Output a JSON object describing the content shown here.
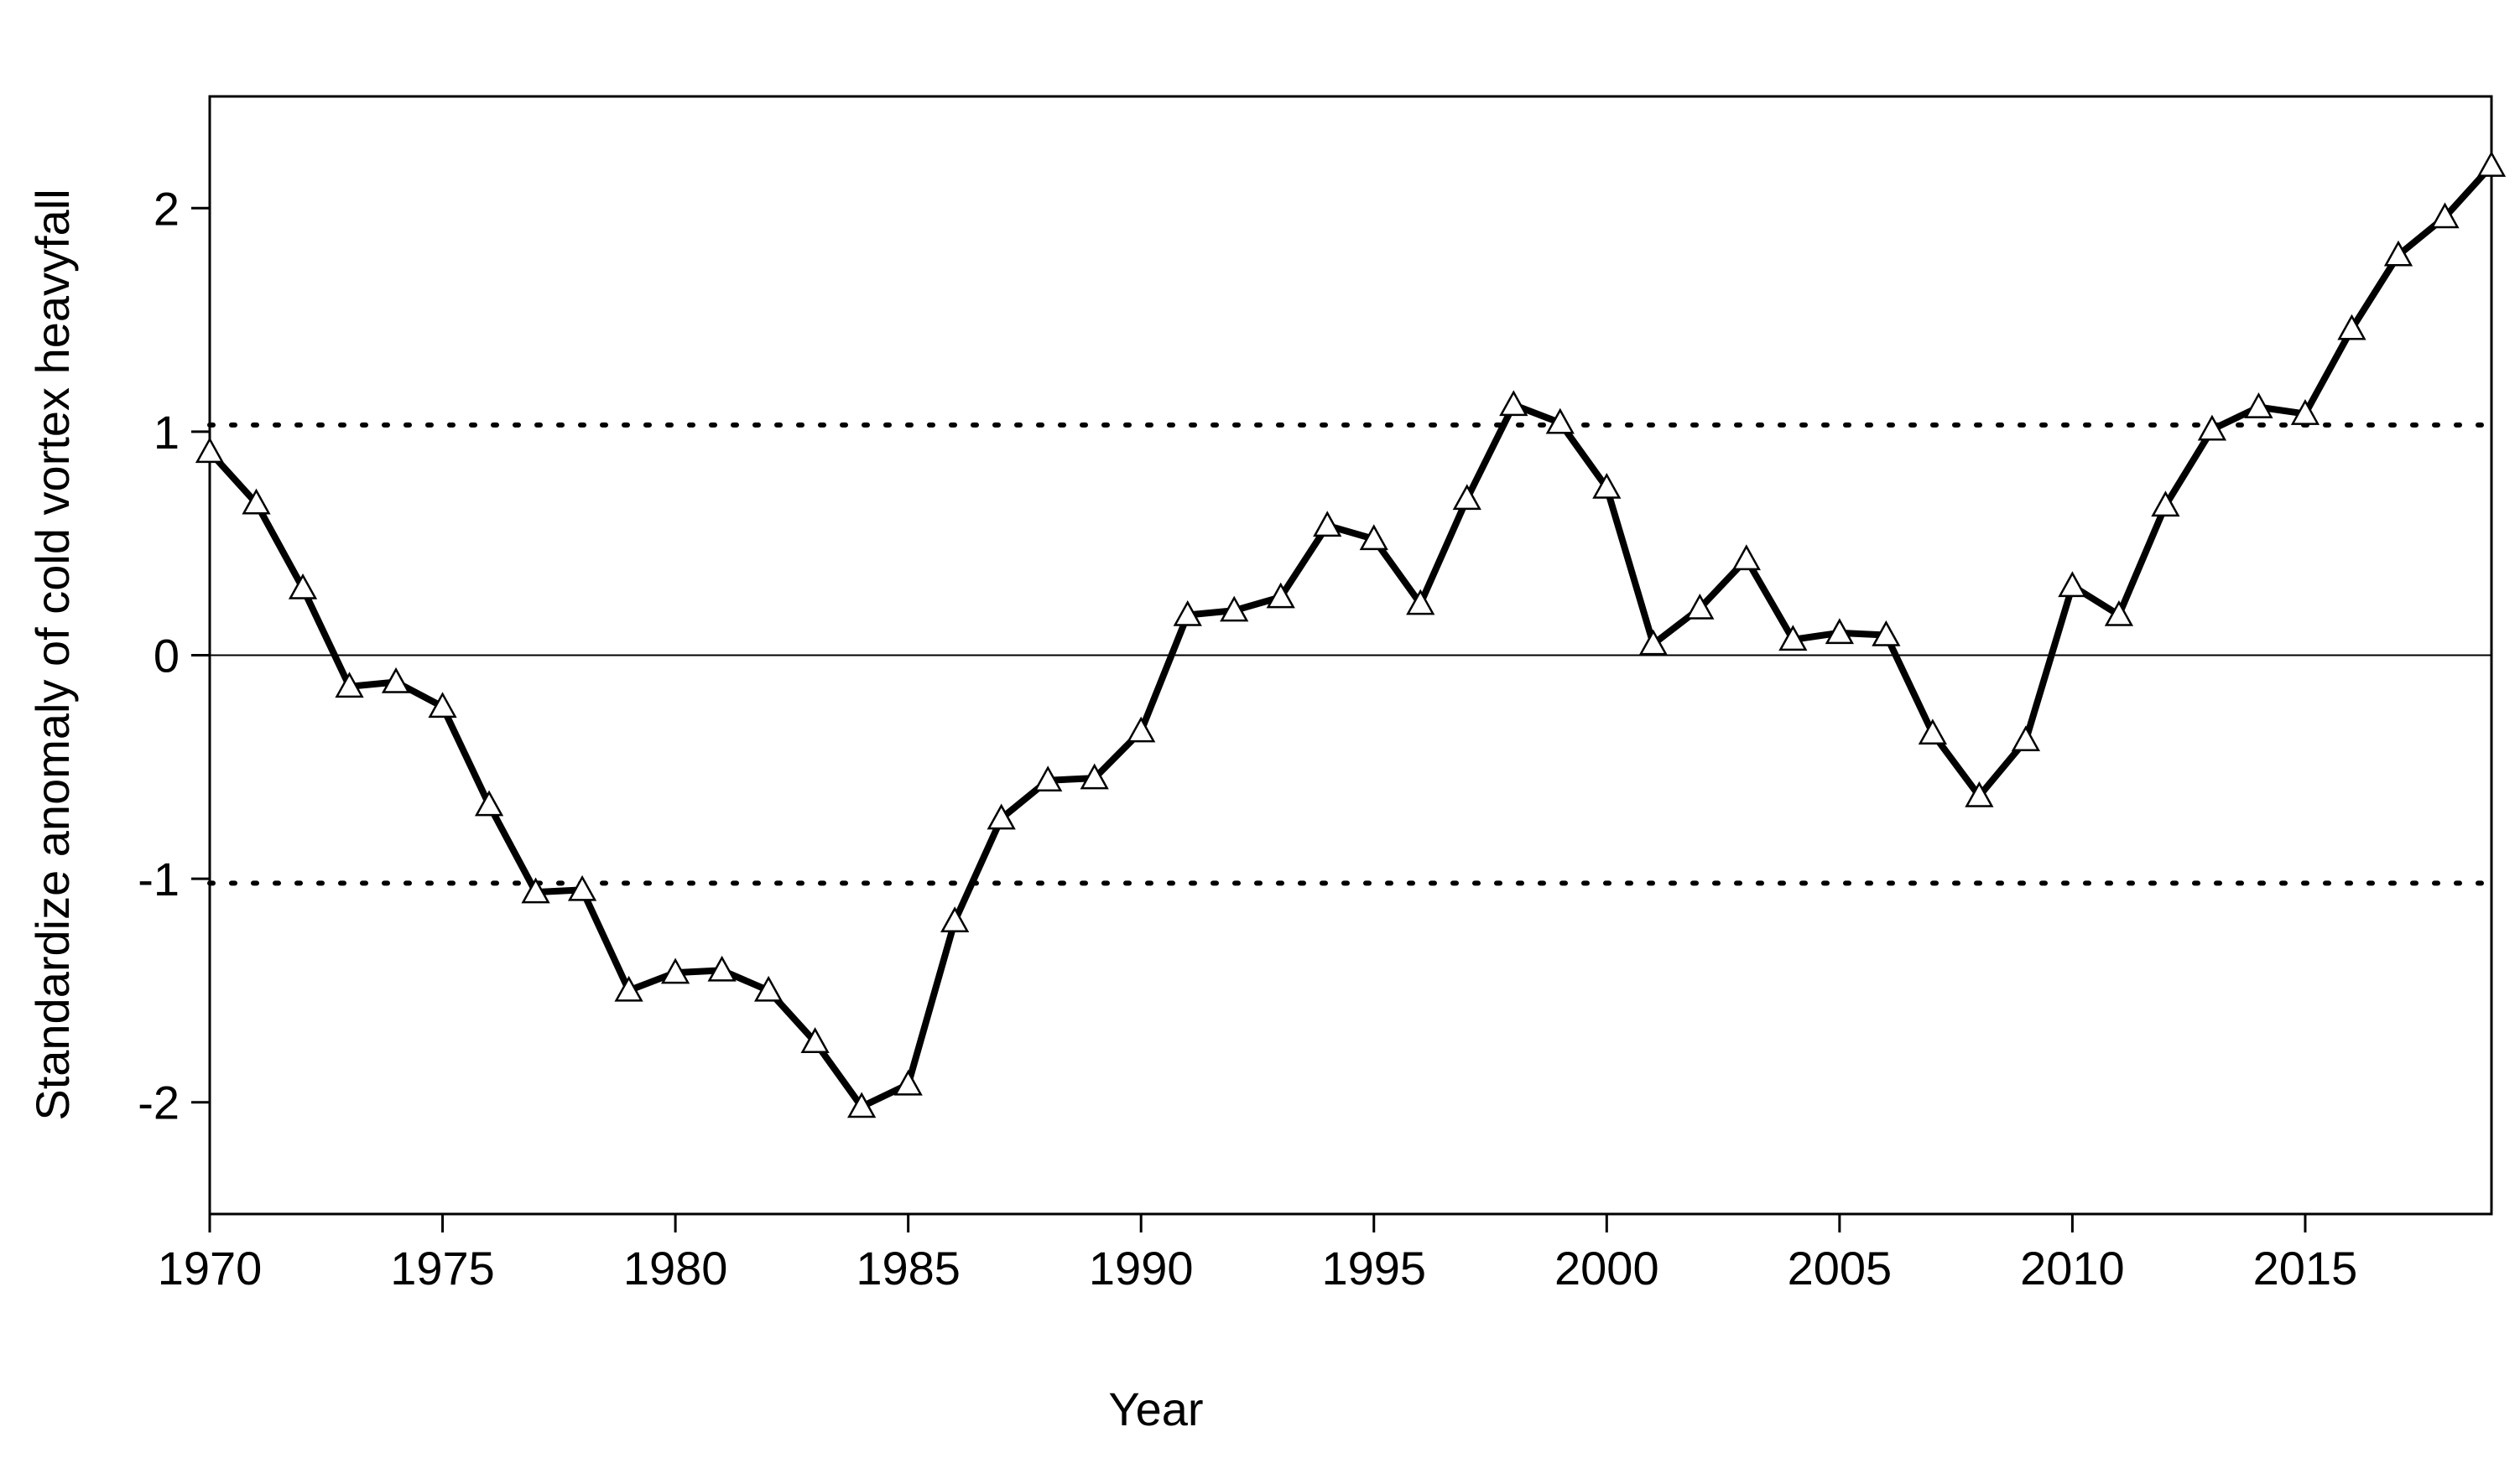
{
  "chart_data": {
    "type": "line",
    "x_label": "Year",
    "y_label": "Standardize anomaly of cold vortex heavyfall",
    "x": [
      1970,
      1971,
      1972,
      1973,
      1974,
      1975,
      1976,
      1977,
      1978,
      1979,
      1980,
      1981,
      1982,
      1983,
      1984,
      1985,
      1986,
      1987,
      1988,
      1989,
      1990,
      1991,
      1992,
      1993,
      1994,
      1995,
      1996,
      1997,
      1998,
      1999,
      2000,
      2001,
      2002,
      2003,
      2004,
      2005,
      2006,
      2007,
      2008,
      2009,
      2010,
      2011,
      2012,
      2013,
      2014,
      2015,
      2016,
      2017,
      2018,
      2019
    ],
    "values": [
      0.91,
      0.68,
      0.3,
      -0.14,
      -0.12,
      -0.23,
      -0.67,
      -1.06,
      -1.05,
      -1.5,
      -1.42,
      -1.41,
      -1.5,
      -1.73,
      -2.02,
      -1.92,
      -1.19,
      -0.73,
      -0.56,
      -0.55,
      -0.34,
      0.18,
      0.2,
      0.26,
      0.58,
      0.52,
      0.23,
      0.7,
      1.12,
      1.04,
      0.75,
      0.05,
      0.21,
      0.43,
      0.07,
      0.1,
      0.09,
      -0.35,
      -0.63,
      -0.38,
      0.31,
      0.18,
      0.67,
      1.01,
      1.11,
      1.08,
      1.46,
      1.79,
      1.96,
      2.19
    ],
    "color": "#000000",
    "marker": "triangle",
    "reference_lines": [
      1.03,
      -1.02
    ],
    "xlim": [
      1970,
      2019
    ],
    "xticks": [
      1970,
      1975,
      1980,
      1985,
      1990,
      1995,
      2000,
      2005,
      2010,
      2015
    ],
    "ylim": [
      -2.5,
      2.5
    ],
    "yticks": [
      -2,
      -1,
      0,
      1,
      2
    ]
  }
}
